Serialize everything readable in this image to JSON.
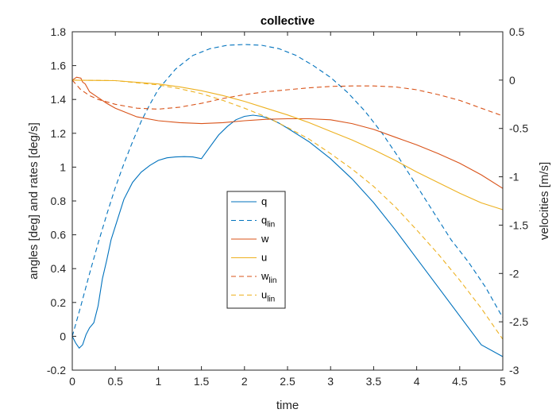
{
  "chart_data": {
    "type": "line",
    "title": "collective",
    "xlabel": "time",
    "ylabel_left": "angles [deg] and rates [deg/s]",
    "ylabel_right": "velocities [m/s]",
    "xlim": [
      0,
      5
    ],
    "ylim_left": [
      -0.2,
      1.8
    ],
    "ylim_right": [
      -3,
      0.5
    ],
    "xticks": [
      "0",
      "0.5",
      "1",
      "1.5",
      "2",
      "2.5",
      "3",
      "3.5",
      "4",
      "4.5",
      "5"
    ],
    "yticks_left": [
      "-0.2",
      "0",
      "0.2",
      "0.4",
      "0.6",
      "0.8",
      "1",
      "1.2",
      "1.4",
      "1.6",
      "1.8"
    ],
    "yticks_right": [
      "-3",
      "-2.5",
      "-2",
      "-1.5",
      "-1",
      "-0.5",
      "0",
      "0.5"
    ],
    "grid": false,
    "legend_position": "center",
    "series": [
      {
        "name": "q",
        "sub": "",
        "axis": "left",
        "color": "#0072BD",
        "dash": "solid",
        "points": [
          [
            0,
            0
          ],
          [
            0.04,
            -0.04
          ],
          [
            0.08,
            -0.07
          ],
          [
            0.12,
            -0.05
          ],
          [
            0.16,
            0.01
          ],
          [
            0.2,
            0.05
          ],
          [
            0.25,
            0.08
          ],
          [
            0.3,
            0.18
          ],
          [
            0.35,
            0.34
          ],
          [
            0.4,
            0.45
          ],
          [
            0.45,
            0.57
          ],
          [
            0.5,
            0.65
          ],
          [
            0.6,
            0.81
          ],
          [
            0.7,
            0.91
          ],
          [
            0.8,
            0.97
          ],
          [
            0.9,
            1.01
          ],
          [
            1.0,
            1.04
          ],
          [
            1.1,
            1.055
          ],
          [
            1.2,
            1.06
          ],
          [
            1.3,
            1.062
          ],
          [
            1.4,
            1.06
          ],
          [
            1.5,
            1.05
          ],
          [
            1.6,
            1.12
          ],
          [
            1.7,
            1.19
          ],
          [
            1.8,
            1.24
          ],
          [
            1.9,
            1.28
          ],
          [
            2.0,
            1.3
          ],
          [
            2.1,
            1.307
          ],
          [
            2.2,
            1.3
          ],
          [
            2.3,
            1.285
          ],
          [
            2.4,
            1.26
          ],
          [
            2.5,
            1.23
          ],
          [
            2.75,
            1.15
          ],
          [
            3.0,
            1.05
          ],
          [
            3.25,
            0.93
          ],
          [
            3.5,
            0.79
          ],
          [
            3.75,
            0.63
          ],
          [
            4.0,
            0.46
          ],
          [
            4.25,
            0.29
          ],
          [
            4.5,
            0.12
          ],
          [
            4.75,
            -0.05
          ],
          [
            5.0,
            -0.12
          ]
        ]
      },
      {
        "name": "q",
        "sub": "lin",
        "axis": "left",
        "color": "#0072BD",
        "dash": "dashed",
        "points": [
          [
            0,
            0.0
          ],
          [
            0.1,
            0.18
          ],
          [
            0.2,
            0.37
          ],
          [
            0.3,
            0.55
          ],
          [
            0.4,
            0.72
          ],
          [
            0.5,
            0.88
          ],
          [
            0.6,
            1.02
          ],
          [
            0.7,
            1.15
          ],
          [
            0.8,
            1.27
          ],
          [
            0.9,
            1.37
          ],
          [
            1.0,
            1.46
          ],
          [
            1.2,
            1.58
          ],
          [
            1.4,
            1.66
          ],
          [
            1.6,
            1.7
          ],
          [
            1.8,
            1.72
          ],
          [
            2.0,
            1.725
          ],
          [
            2.2,
            1.72
          ],
          [
            2.4,
            1.7
          ],
          [
            2.6,
            1.66
          ],
          [
            2.8,
            1.6
          ],
          [
            3.0,
            1.53
          ],
          [
            3.2,
            1.44
          ],
          [
            3.4,
            1.33
          ],
          [
            3.6,
            1.2
          ],
          [
            3.8,
            1.05
          ],
          [
            4.0,
            0.89
          ],
          [
            4.2,
            0.73
          ],
          [
            4.4,
            0.57
          ],
          [
            4.6,
            0.44
          ],
          [
            4.8,
            0.29
          ],
          [
            5.0,
            0.11
          ]
        ]
      },
      {
        "name": "w",
        "sub": "",
        "axis": "right",
        "color": "#D95319",
        "dash": "solid",
        "points": [
          [
            0,
            0.0
          ],
          [
            0.05,
            0.03
          ],
          [
            0.1,
            0.02
          ],
          [
            0.12,
            -0.02
          ],
          [
            0.15,
            -0.04
          ],
          [
            0.2,
            -0.12
          ],
          [
            0.3,
            -0.18
          ],
          [
            0.4,
            -0.24
          ],
          [
            0.5,
            -0.29
          ],
          [
            0.75,
            -0.38
          ],
          [
            1.0,
            -0.42
          ],
          [
            1.25,
            -0.44
          ],
          [
            1.5,
            -0.45
          ],
          [
            1.75,
            -0.44
          ],
          [
            2.0,
            -0.42
          ],
          [
            2.25,
            -0.405
          ],
          [
            2.5,
            -0.4
          ],
          [
            2.75,
            -0.4
          ],
          [
            3.0,
            -0.41
          ],
          [
            3.25,
            -0.45
          ],
          [
            3.5,
            -0.51
          ],
          [
            3.75,
            -0.59
          ],
          [
            4.0,
            -0.67
          ],
          [
            4.25,
            -0.76
          ],
          [
            4.5,
            -0.86
          ],
          [
            4.75,
            -0.98
          ],
          [
            5.0,
            -1.12
          ]
        ]
      },
      {
        "name": "u",
        "sub": "",
        "axis": "right",
        "color": "#EDB120",
        "dash": "solid",
        "points": [
          [
            0,
            0.0
          ],
          [
            0.5,
            -0.005
          ],
          [
            1.0,
            -0.04
          ],
          [
            1.25,
            -0.07
          ],
          [
            1.5,
            -0.11
          ],
          [
            1.75,
            -0.16
          ],
          [
            2.0,
            -0.22
          ],
          [
            2.25,
            -0.29
          ],
          [
            2.5,
            -0.36
          ],
          [
            2.75,
            -0.44
          ],
          [
            3.0,
            -0.53
          ],
          [
            3.25,
            -0.62
          ],
          [
            3.5,
            -0.72
          ],
          [
            3.75,
            -0.83
          ],
          [
            4.0,
            -0.95
          ],
          [
            4.25,
            -1.06
          ],
          [
            4.5,
            -1.17
          ],
          [
            4.75,
            -1.27
          ],
          [
            5.0,
            -1.34
          ]
        ]
      },
      {
        "name": "w",
        "sub": "lin",
        "axis": "right",
        "color": "#D95319",
        "dash": "dashed",
        "points": [
          [
            0,
            0.0
          ],
          [
            0.1,
            -0.1
          ],
          [
            0.2,
            -0.16
          ],
          [
            0.3,
            -0.2
          ],
          [
            0.5,
            -0.25
          ],
          [
            0.75,
            -0.29
          ],
          [
            1.0,
            -0.3
          ],
          [
            1.25,
            -0.28
          ],
          [
            1.5,
            -0.24
          ],
          [
            1.75,
            -0.19
          ],
          [
            2.0,
            -0.15
          ],
          [
            2.25,
            -0.12
          ],
          [
            2.5,
            -0.1
          ],
          [
            2.75,
            -0.08
          ],
          [
            3.0,
            -0.065
          ],
          [
            3.25,
            -0.06
          ],
          [
            3.5,
            -0.06
          ],
          [
            3.75,
            -0.07
          ],
          [
            4.0,
            -0.1
          ],
          [
            4.25,
            -0.15
          ],
          [
            4.5,
            -0.21
          ],
          [
            4.75,
            -0.29
          ],
          [
            5.0,
            -0.37
          ]
        ]
      },
      {
        "name": "u",
        "sub": "lin",
        "axis": "right",
        "color": "#EDB120",
        "dash": "dashed",
        "points": [
          [
            0,
            0.0
          ],
          [
            0.5,
            -0.005
          ],
          [
            1.0,
            -0.05
          ],
          [
            1.25,
            -0.09
          ],
          [
            1.5,
            -0.14
          ],
          [
            1.75,
            -0.21
          ],
          [
            2.0,
            -0.29
          ],
          [
            2.25,
            -0.38
          ],
          [
            2.5,
            -0.49
          ],
          [
            2.75,
            -0.61
          ],
          [
            3.0,
            -0.76
          ],
          [
            3.25,
            -0.92
          ],
          [
            3.5,
            -1.1
          ],
          [
            3.75,
            -1.31
          ],
          [
            4.0,
            -1.55
          ],
          [
            4.25,
            -1.8
          ],
          [
            4.5,
            -2.07
          ],
          [
            4.75,
            -2.36
          ],
          [
            5.0,
            -2.68
          ]
        ]
      }
    ]
  }
}
